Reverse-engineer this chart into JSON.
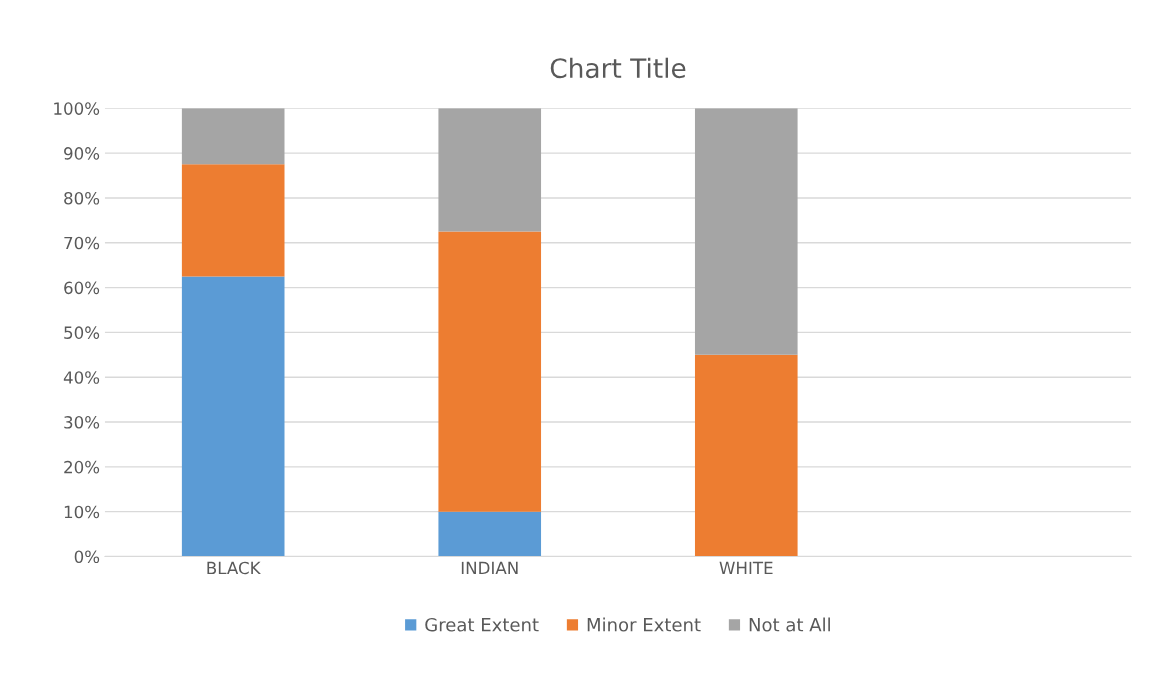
{
  "chart_data": {
    "type": "bar",
    "title": "Chart Title",
    "stacked": true,
    "categories": [
      "BLACK",
      "INDIAN",
      "WHITE",
      null
    ],
    "series": [
      {
        "name": "Great Extent",
        "color": "#5b9bd5",
        "values": [
          62.5,
          10,
          0,
          null
        ]
      },
      {
        "name": "Minor Extent",
        "color": "#ed7d31",
        "values": [
          25,
          62.5,
          45,
          null
        ]
      },
      {
        "name": "Not at All",
        "color": "#a5a5a5",
        "values": [
          12.5,
          27.5,
          55,
          null
        ]
      }
    ],
    "ylim": [
      0,
      100
    ],
    "yticks": [
      {
        "value": 0,
        "label": "0%"
      },
      {
        "value": 10,
        "label": "10%"
      },
      {
        "value": 20,
        "label": "20%"
      },
      {
        "value": 30,
        "label": "30%"
      },
      {
        "value": 40,
        "label": "40%"
      },
      {
        "value": 50,
        "label": "50%"
      },
      {
        "value": 60,
        "label": "60%"
      },
      {
        "value": 70,
        "label": "70%"
      },
      {
        "value": 80,
        "label": "80%"
      },
      {
        "value": 90,
        "label": "90%"
      },
      {
        "value": 100,
        "label": "100%"
      }
    ],
    "grid": "y",
    "legend": "bottom"
  }
}
